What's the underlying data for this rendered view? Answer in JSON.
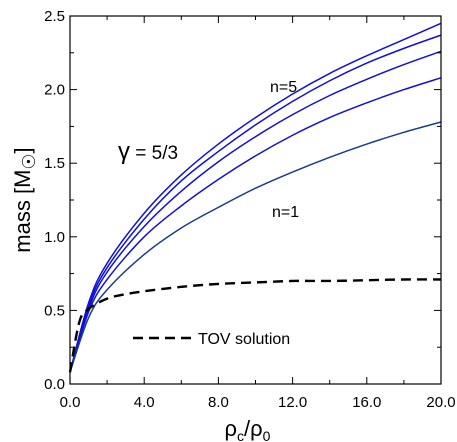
{
  "chart_data": {
    "type": "line",
    "xlabel": {
      "main": "ρ",
      "sub1": "c",
      "sep": "/ρ",
      "sub2": "0"
    },
    "ylabel": {
      "main": "mass [M",
      "sym": "☉",
      "end": "]"
    },
    "xlim": [
      0,
      20
    ],
    "ylim": [
      0,
      2.5
    ],
    "xticks": [
      0,
      4,
      8,
      12,
      16,
      20
    ],
    "xtick_labels": [
      "0.0",
      "4.0",
      "8.0",
      "12.0",
      "16.0",
      "20.0"
    ],
    "yticks": [
      0,
      0.5,
      1.0,
      1.5,
      2.0,
      2.5
    ],
    "ytick_labels": [
      "0.0",
      "0.5",
      "1.0",
      "1.5",
      "2.0",
      "2.5"
    ],
    "grid": false,
    "colors": {
      "blue": "#1010d8",
      "navy": "#1a3c8c",
      "black": "#000000"
    },
    "series": [
      {
        "key": "n5",
        "color": "#1010d8",
        "dashed": false,
        "x": [
          0,
          1,
          2,
          4,
          6,
          8,
          10,
          12,
          14,
          16,
          18,
          20
        ],
        "y": [
          0.08,
          0.55,
          0.82,
          1.16,
          1.42,
          1.63,
          1.81,
          1.97,
          2.11,
          2.23,
          2.34,
          2.45
        ]
      },
      {
        "key": "n4",
        "color": "#1010d8",
        "dashed": false,
        "x": [
          0,
          1,
          2,
          4,
          6,
          8,
          10,
          12,
          14,
          16,
          18,
          20
        ],
        "y": [
          0.08,
          0.53,
          0.79,
          1.12,
          1.38,
          1.58,
          1.76,
          1.92,
          2.06,
          2.18,
          2.28,
          2.37
        ]
      },
      {
        "key": "n3",
        "color": "#1010d8",
        "dashed": false,
        "x": [
          0,
          1,
          2,
          4,
          6,
          8,
          10,
          12,
          14,
          16,
          18,
          20
        ],
        "y": [
          0.08,
          0.51,
          0.76,
          1.07,
          1.31,
          1.51,
          1.68,
          1.83,
          1.96,
          2.07,
          2.17,
          2.26
        ]
      },
      {
        "key": "n2",
        "color": "#1010d8",
        "dashed": false,
        "x": [
          0,
          1,
          2,
          4,
          6,
          8,
          10,
          12,
          14,
          16,
          18,
          20
        ],
        "y": [
          0.08,
          0.49,
          0.71,
          1.0,
          1.21,
          1.39,
          1.55,
          1.69,
          1.81,
          1.91,
          2.0,
          2.08
        ]
      },
      {
        "key": "n1",
        "color": "#1a3c8c",
        "dashed": false,
        "x": [
          0,
          1,
          2,
          4,
          6,
          8,
          10,
          12,
          14,
          16,
          18,
          20
        ],
        "y": [
          0.08,
          0.45,
          0.64,
          0.88,
          1.06,
          1.2,
          1.33,
          1.44,
          1.54,
          1.63,
          1.71,
          1.78
        ]
      },
      {
        "key": "tov",
        "color": "#000000",
        "dashed": true,
        "x": [
          0,
          0.5,
          1,
          2,
          3,
          4,
          6,
          8,
          10,
          12,
          14,
          16,
          18,
          20
        ],
        "y": [
          0.08,
          0.42,
          0.51,
          0.58,
          0.61,
          0.63,
          0.66,
          0.68,
          0.69,
          0.7,
          0.7,
          0.705,
          0.71,
          0.71
        ]
      }
    ],
    "annotations": [
      {
        "key": "n5_label",
        "text": "n=5"
      },
      {
        "key": "n1_label",
        "text": "n=1"
      },
      {
        "key": "gamma_label",
        "sym": "γ",
        "text": " = 5/3"
      }
    ],
    "legend": {
      "entries": [
        {
          "text": "TOV solution",
          "dashed": true
        }
      ],
      "placement": "bottom-center"
    }
  }
}
